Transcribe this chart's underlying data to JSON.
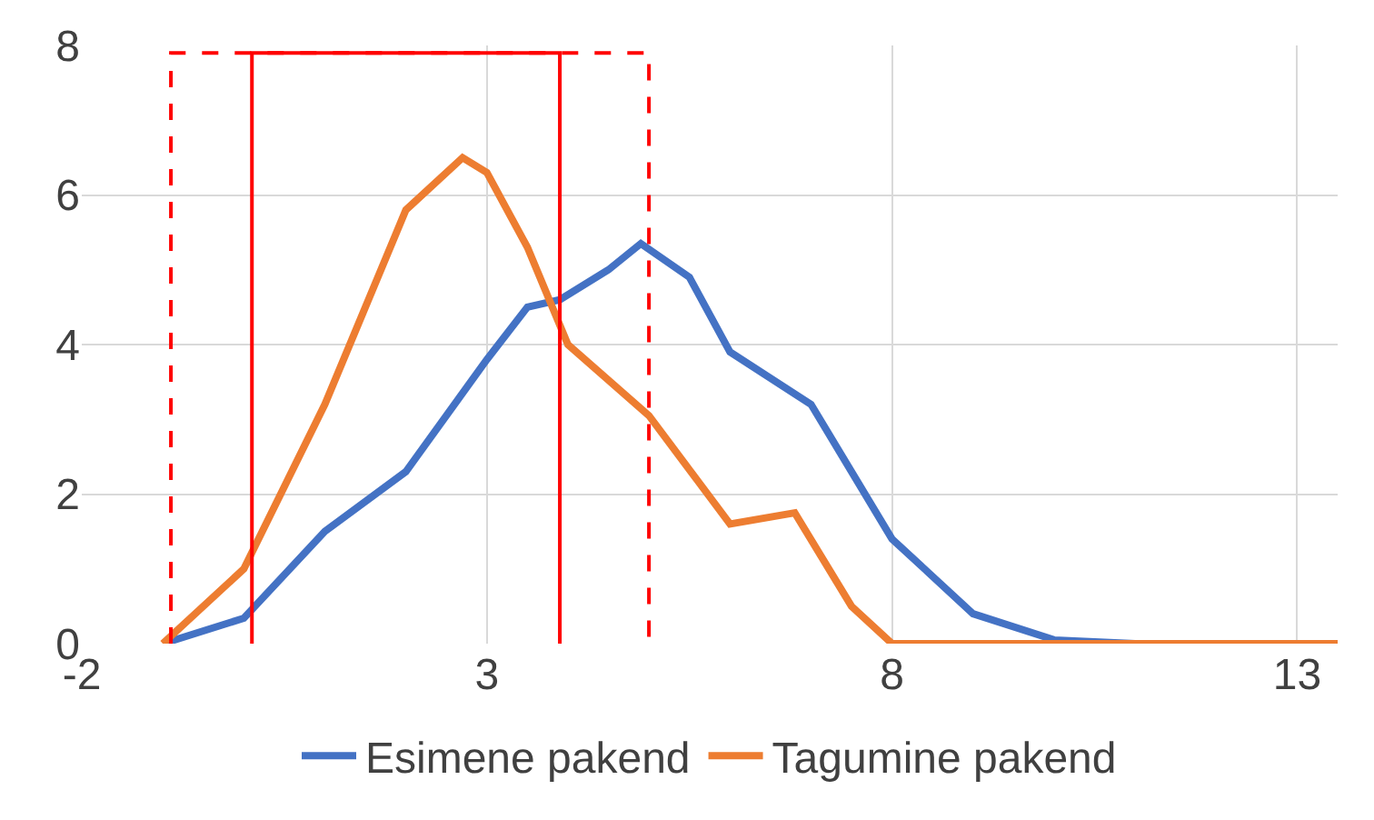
{
  "chart_data": {
    "type": "line",
    "xlim": [
      -2,
      13.5
    ],
    "xticks": [
      -2,
      3,
      8,
      13
    ],
    "ylim": [
      0,
      8
    ],
    "yticks": [
      0,
      2,
      4,
      6,
      8
    ],
    "grid": true,
    "legend": "bottom",
    "marker": "none",
    "line_style": "solid",
    "series": [
      {
        "name": "Esimene pakend",
        "color": "#4472c4",
        "x": [
          -1,
          0,
          1,
          2,
          3,
          3.5,
          3.9,
          4.5,
          4.9,
          5.5,
          6,
          7,
          8,
          9,
          10,
          11,
          13.5
        ],
        "values": [
          0,
          0.34,
          1.5,
          2.3,
          3.8,
          4.5,
          4.6,
          5.0,
          5.35,
          4.9,
          3.9,
          3.2,
          1.4,
          0.4,
          0.05,
          0,
          0
        ]
      },
      {
        "name": "Tagumine pakend",
        "color": "#ed7d31",
        "x": [
          -1,
          0,
          1,
          2,
          2.7,
          3,
          3.5,
          4,
          5,
          6,
          6.8,
          7.5,
          8,
          9,
          13.5
        ],
        "values": [
          0,
          1.0,
          3.2,
          5.8,
          6.5,
          6.3,
          5.3,
          4.0,
          3.05,
          1.6,
          1.75,
          0.5,
          0,
          0,
          0
        ]
      },
      {
        "color": "#ff0000",
        "line_style": "solid",
        "x": [
          0.1,
          0.1,
          3.9,
          3.9
        ],
        "values": [
          0,
          7.9,
          7.9,
          0
        ]
      },
      {
        "color": "#ff0000",
        "line_style": "dashed",
        "x": [
          -0.9,
          -0.9,
          5.0,
          5.0
        ],
        "values": [
          0,
          7.9,
          7.9,
          0
        ]
      }
    ]
  }
}
